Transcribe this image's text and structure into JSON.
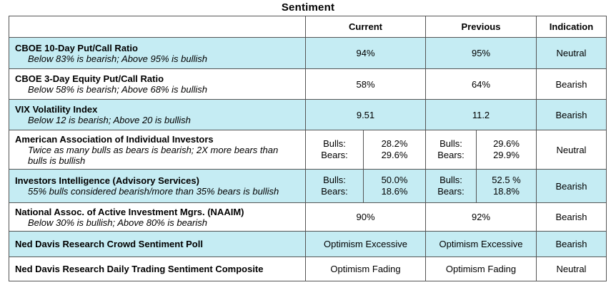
{
  "page": {
    "title": "Sentiment"
  },
  "table": {
    "columns": [
      "",
      "Current",
      "Previous",
      "Indication"
    ],
    "rows": [
      {
        "name": "CBOE 10-Day Put/Call Ratio",
        "note": "Below 83% is bearish; Above 95% is bullish",
        "current": "94%",
        "previous": "95%",
        "indication": "Neutral"
      },
      {
        "name": "CBOE 3-Day Equity Put/Call Ratio",
        "note": "Below 58% is bearish; Above 68% is bullish",
        "current": "58%",
        "previous": "64%",
        "indication": "Bearish"
      },
      {
        "name": "VIX Volatility Index",
        "note": "Below 12 is bearish; Above 20 is bullish",
        "current": "9.51",
        "previous": "11.2",
        "indication": "Bearish"
      },
      {
        "name": "American Association of Individual Investors",
        "note": "Twice as many bulls as bears is bearish; 2X more bears than bulls is bullish",
        "current_bulls_label": "Bulls:",
        "current_bears_label": "Bears:",
        "current_bulls": "28.2%",
        "current_bears": "29.6%",
        "previous_bulls_label": "Bulls:",
        "previous_bears_label": "Bears:",
        "previous_bulls": "29.6%",
        "previous_bears": "29.9%",
        "indication": "Neutral"
      },
      {
        "name": "Investors Intelligence (Advisory Services)",
        "note": "55% bulls considered bearish/more than 35% bears is bullish",
        "current_bulls_label": "Bulls:",
        "current_bears_label": "Bears:",
        "current_bulls": "50.0%",
        "current_bears": "18.6%",
        "previous_bulls_label": "Bulls:",
        "previous_bears_label": "Bears:",
        "previous_bulls": "52.5 %",
        "previous_bears": "18.8%",
        "indication": "Bearish"
      },
      {
        "name": "National Assoc. of Active Investment Mgrs. (NAAIM)",
        "note": "Below 30% is bullish; Above 80% is bearish",
        "current": "90%",
        "previous": "92%",
        "indication": "Bearish"
      },
      {
        "name": "Ned Davis Research Crowd Sentiment Poll",
        "current": "Optimism Excessive",
        "previous": "Optimism Excessive",
        "indication": "Bearish"
      },
      {
        "name": "Ned Davis Research Daily Trading Sentiment Composite",
        "current": "Optimism Fading",
        "previous": "Optimism Fading",
        "indication": "Neutral"
      }
    ]
  }
}
